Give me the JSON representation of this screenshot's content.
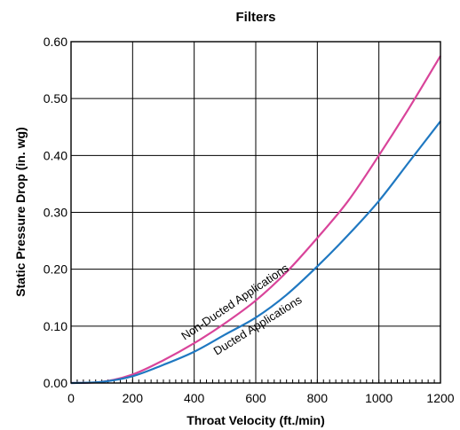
{
  "chart_data": {
    "type": "line",
    "title": "Filters",
    "xlabel": "Throat Velocity (ft./min)",
    "ylabel": "Static Pressure Drop (in. wg)",
    "xlim": [
      0,
      1200
    ],
    "ylim": [
      0,
      0.6
    ],
    "x_ticks": [
      "0",
      "200",
      "400",
      "600",
      "800",
      "1000",
      "1200"
    ],
    "y_ticks": [
      "0.00",
      "0.10",
      "0.20",
      "0.30",
      "0.40",
      "0.50",
      "0.60"
    ],
    "grid": true,
    "series": [
      {
        "name": "Non-Ducted Applications",
        "color": "#d9449a",
        "x": [
          0,
          100,
          200,
          300,
          400,
          500,
          600,
          700,
          800,
          900,
          1000,
          1100,
          1200
        ],
        "values": [
          0.0,
          0.002,
          0.015,
          0.04,
          0.07,
          0.105,
          0.145,
          0.195,
          0.255,
          0.32,
          0.4,
          0.485,
          0.575
        ]
      },
      {
        "name": "Ducted Applications",
        "color": "#1f78c1",
        "x": [
          0,
          100,
          200,
          300,
          400,
          500,
          600,
          700,
          800,
          900,
          1000,
          1100,
          1200
        ],
        "values": [
          0.0,
          0.002,
          0.012,
          0.032,
          0.055,
          0.085,
          0.115,
          0.155,
          0.205,
          0.26,
          0.32,
          0.39,
          0.46
        ]
      }
    ]
  }
}
